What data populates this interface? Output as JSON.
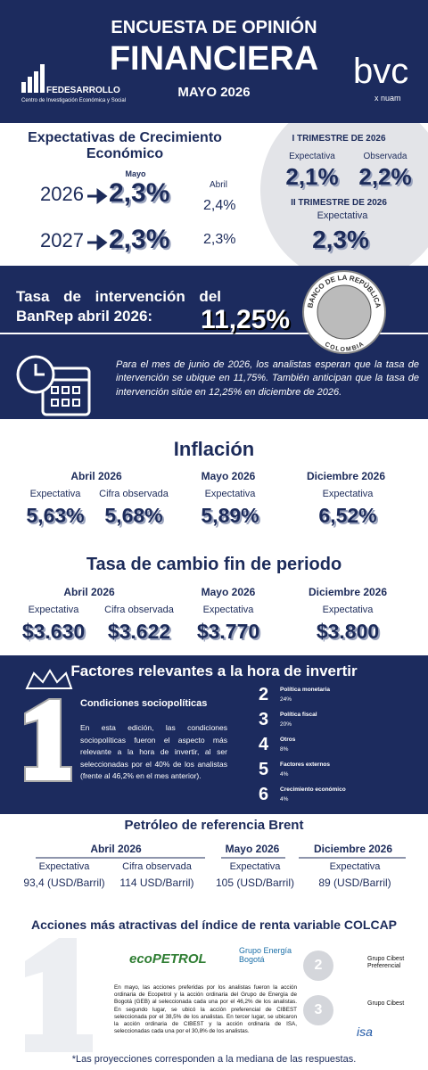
{
  "header": {
    "title_line1": "ENCUESTA DE OPINIÓN",
    "title_line2": "FINANCIERA",
    "date": "MAYO 2026",
    "org": "FEDESARROLLO",
    "org_subtitle": "Centro de Investigación Económica y Social",
    "partner": "bvc",
    "partner_sub": "x nuam"
  },
  "growth": {
    "title": "Expectativas de Crecimiento Económico",
    "current_label": "Mayo",
    "previous_label": "Abril",
    "rows": [
      {
        "year": "2026",
        "value": "2,3%",
        "previous": "2,4%"
      },
      {
        "year": "2027",
        "value": "2,3%",
        "previous": "2,3%"
      }
    ],
    "quarter": {
      "title": "I TRIMESTRE DE 2026",
      "expected_label": "Expectativa",
      "observed_label": "Observada",
      "expected": "2,1%",
      "observed": "2,2%"
    },
    "next_quarter": {
      "title": "II TRIMESTRE DE 2026",
      "expected_label": "Expectativa",
      "expected": "2,3%"
    }
  },
  "rate": {
    "title": "Tasa de intervención del BanRep abril 2026:",
    "value": "11,25%",
    "seal_top": "BANCO DE LA REPÚBLICA",
    "seal_bottom": "COLOMBIA",
    "note": "Para el mes de junio de 2026, los analistas esperan que la tasa de intervención se ubique en 11,75%. También anticipan que la tasa de intervención sitúe en 12,25% en diciembre de 2026."
  },
  "inflation": {
    "title": "Inflación",
    "periods": [
      {
        "period": "Abril 2026",
        "items": [
          {
            "label": "Expectativa",
            "value": "5,63%"
          },
          {
            "label": "Cifra observada",
            "value": "5,68%"
          }
        ]
      },
      {
        "period": "Mayo 2026",
        "items": [
          {
            "label": "Expectativa",
            "value": "5,89%"
          }
        ]
      },
      {
        "period": "Diciembre 2026",
        "items": [
          {
            "label": "Expectativa",
            "value": "6,52%"
          }
        ]
      }
    ]
  },
  "exchange": {
    "title": "Tasa de cambio fin de periodo",
    "periods": [
      {
        "period": "Abril 2026",
        "items": [
          {
            "label": "Expectativa",
            "value": "$3.630"
          },
          {
            "label": "Cifra observada",
            "value": "$3.622"
          }
        ]
      },
      {
        "period": "Mayo 2026",
        "items": [
          {
            "label": "Expectativa",
            "value": "$3.770"
          }
        ]
      },
      {
        "period": "Diciembre 2026",
        "items": [
          {
            "label": "Expectativa",
            "value": "$3.800"
          }
        ]
      }
    ]
  },
  "factors": {
    "title": "Factores relevantes a la hora de invertir",
    "top": {
      "name": "Condiciones sociopolíticas",
      "text": "En esta edición, las condiciones sociopolíticas fueron el aspecto más relevante a la hora de invertir, al ser seleccionadas por el 40% de los analistas (frente al 46,2% en el mes anterior)."
    },
    "others": [
      {
        "rank": "2",
        "name": "Política monetaria",
        "share": "24%"
      },
      {
        "rank": "3",
        "name": "Política fiscal",
        "share": "20%"
      },
      {
        "rank": "4",
        "name": "Otros",
        "share": "8%"
      },
      {
        "rank": "5",
        "name": "Factores externos",
        "share": "4%"
      },
      {
        "rank": "6",
        "name": "Crecimiento económico",
        "share": "4%"
      }
    ]
  },
  "oil": {
    "title": "Petróleo de referencia Brent",
    "periods": [
      {
        "period": "Abril 2026",
        "items": [
          {
            "label": "Expectativa",
            "value": "93,4 (USD/Barril)"
          },
          {
            "label": "Cifra observada",
            "value": "114 USD/Barril)"
          }
        ]
      },
      {
        "period": "Mayo 2026",
        "items": [
          {
            "label": "Expectativa",
            "value": "105 (USD/Barril)"
          }
        ]
      },
      {
        "period": "Diciembre 2026",
        "items": [
          {
            "label": "Expectativa",
            "value": "89 (USD/Barril)"
          }
        ]
      }
    ]
  },
  "stocks": {
    "title": "Acciones más atractivas del índice de renta variable COLCAP",
    "companies": [
      "ecoPETROL",
      "Grupo Energía Bogotá",
      "Grupo Cibest Preferencial",
      "Grupo Cibest",
      "isa"
    ],
    "ranks": [
      "2",
      "3"
    ],
    "text": "En mayo, las acciones preferidas por los analistas fueron la acción ordinaria de Ecopetrol y la acción ordinaria del Grupo de Energía de Bogotá (GEB) al seleccionada cada una por el 46,2% de los analistas. En segundo lugar, se ubicó la acción preferencial de CIBEST seleccionada por el 38,5% de los analistas. En tercer lugar, se ubicaron la acción ordinaria de CIBEST y la acción ordinaria de ISA, seleccionadas cada una por el 30,8% de los analistas."
  },
  "footnote": "*Las proyecciones corresponden a la mediana de las respuestas."
}
